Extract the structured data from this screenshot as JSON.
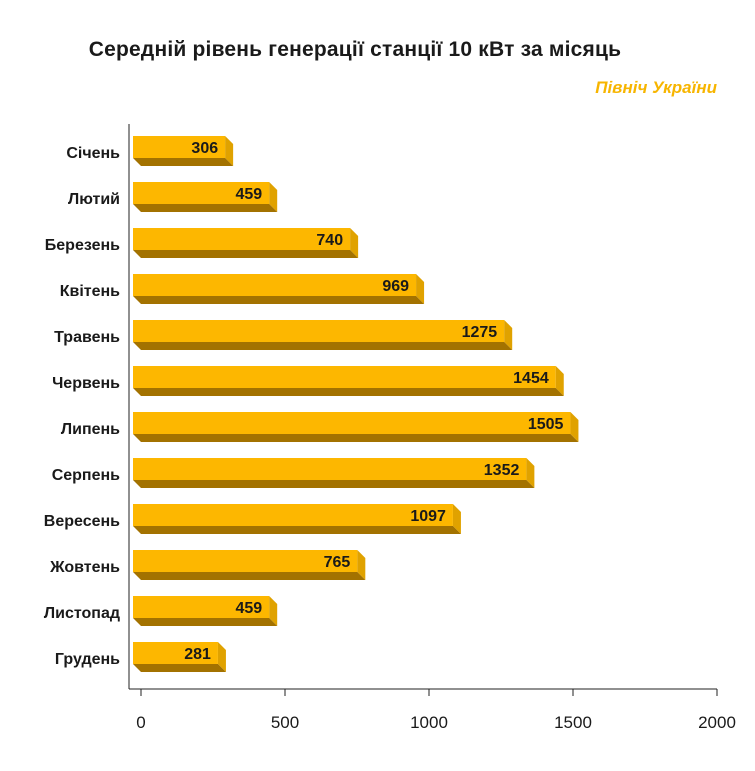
{
  "title": "Середній рівень генерації станції 10 кВт за місяць",
  "subtitle": "Північ України",
  "colors": {
    "bar_front": "#fdb700",
    "bar_side": "#e0a200",
    "bar_bottom": "#a37200",
    "axis": "#222222"
  },
  "chart_data": {
    "type": "bar",
    "orientation": "horizontal",
    "title": "Середній рівень генерації станції 10 кВт за місяць",
    "subtitle": "Північ України",
    "xlabel": "",
    "ylabel": "",
    "xlim": [
      0,
      2000
    ],
    "xticks": [
      0,
      500,
      1000,
      1500,
      2000
    ],
    "grid": false,
    "categories": [
      "Січень",
      "Лютий",
      "Березень",
      "Квітень",
      "Травень",
      "Червень",
      "Липень",
      "Серпень",
      "Вересень",
      "Жовтень",
      "Листопад",
      "Грудень"
    ],
    "values": [
      306,
      459,
      740,
      969,
      1275,
      1454,
      1505,
      1352,
      1097,
      765,
      459,
      281
    ]
  }
}
